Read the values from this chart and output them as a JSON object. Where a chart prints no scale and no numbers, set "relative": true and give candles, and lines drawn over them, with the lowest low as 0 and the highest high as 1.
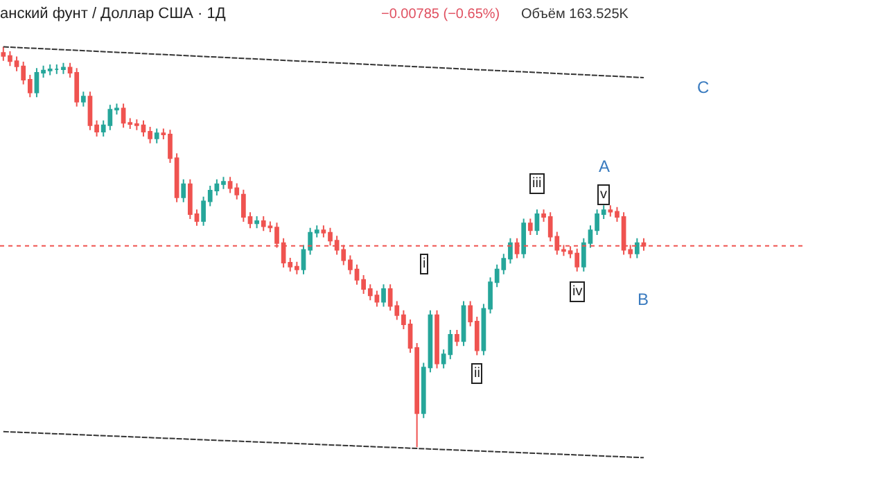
{
  "chart_data": {
    "type": "candlestick",
    "relative": true,
    "title": "анский фунт / Доллар США · 1Д",
    "annotations": [
      "−0.00785 (−0.65%)",
      "Объём 163.525K",
      "A",
      "B",
      "C",
      {
        "text": "i",
        "y": 0.458
      },
      {
        "text": "ii",
        "y": 0.183
      },
      {
        "text": "iii",
        "y": 0.657
      },
      {
        "text": "iv",
        "y": 0.389
      },
      {
        "text": "v",
        "y": 0.631
      }
    ],
    "colors": [
      "#ef5350",
      "#ef5350",
      "#ef5350",
      "#ef5350",
      "#ef5350",
      "#26a69a",
      "#26a69a",
      "#26a69a",
      "#26a69a",
      "#26a69a",
      "#ef5350",
      "#ef5350",
      "#26a69a",
      "#ef5350",
      "#ef5350",
      "#26a69a",
      "#26a69a",
      "#26a69a",
      "#ef5350",
      "#ef5350",
      "#ef5350",
      "#ef5350",
      "#ef5350",
      "#26a69a",
      "#ef5350",
      "#ef5350",
      "#ef5350",
      "#26a69a",
      "#ef5350",
      "#ef5350",
      "#26a69a",
      "#26a69a",
      "#26a69a",
      "#26a69a",
      "#ef5350",
      "#ef5350",
      "#ef5350",
      "#ef5350",
      "#26a69a",
      "#ef5350",
      "#ef5350",
      "#ef5350",
      "#ef5350",
      "#ef5350",
      "#ef5350",
      "#26a69a",
      "#26a69a",
      "#26a69a",
      "#ef5350",
      "#ef5350",
      "#ef5350",
      "#ef5350",
      "#ef5350",
      "#ef5350",
      "#ef5350",
      "#ef5350",
      "#ef5350",
      "#26a69a",
      "#ef5350",
      "#ef5350",
      "#ef5350",
      "#ef5350",
      "#ef5350",
      "#26a69a",
      "#26a69a",
      "#ef5350",
      "#26a69a",
      "#26a69a",
      "#ef5350",
      "#26a69a",
      "#ef5350",
      "#ef5350",
      "#26a69a",
      "#26a69a",
      "#26a69a",
      "#26a69a",
      "#26a69a",
      "#ef5350",
      "#26a69a",
      "#ef5350",
      "#26a69a",
      "#ef5350",
      "#ef5350",
      "#ef5350",
      "#ef5350",
      "#ef5350",
      "#ef5350",
      "#26a69a",
      "#26a69a",
      "#26a69a",
      "#26a69a",
      "#ef5350",
      "#ef5350",
      "#ef5350",
      "#ef5350",
      "#26a69a",
      "#ef5350"
    ],
    "categories": [
      null,
      null,
      null,
      null,
      null,
      null,
      null,
      null,
      null,
      null,
      null,
      null,
      null,
      null,
      null,
      null,
      null,
      null,
      null,
      null,
      null,
      null,
      null,
      null,
      null,
      null,
      null,
      null,
      null,
      null,
      null,
      null,
      null,
      null,
      null,
      null,
      null,
      null,
      null,
      null,
      null,
      null,
      null,
      null,
      null,
      null,
      null,
      null,
      null,
      null,
      null,
      null,
      null,
      null,
      null,
      null,
      null,
      null,
      null,
      null,
      null,
      null,
      null,
      null,
      null,
      null,
      null,
      null,
      null,
      null,
      null,
      null,
      null,
      null,
      null,
      null,
      null,
      null,
      null,
      null,
      null,
      null,
      null,
      null,
      null,
      null,
      null,
      null,
      null,
      null,
      null,
      null,
      null,
      null,
      null,
      null,
      null
    ],
    "ohlc": [
      [
        0.985,
        1.0,
        0.965,
        0.977
      ],
      [
        0.977,
        0.989,
        0.952,
        0.964
      ],
      [
        0.964,
        0.976,
        0.939,
        0.951
      ],
      [
        0.951,
        0.963,
        0.906,
        0.918
      ],
      [
        0.918,
        0.93,
        0.874,
        0.886
      ],
      [
        0.886,
        0.947,
        0.874,
        0.935
      ],
      [
        0.935,
        0.953,
        0.923,
        0.941
      ],
      [
        0.941,
        0.956,
        0.929,
        0.944
      ],
      [
        0.944,
        0.956,
        0.932,
        0.944
      ],
      [
        0.944,
        0.96,
        0.932,
        0.948
      ],
      [
        0.948,
        0.96,
        0.923,
        0.935
      ],
      [
        0.935,
        0.947,
        0.851,
        0.863
      ],
      [
        0.863,
        0.888,
        0.851,
        0.876
      ],
      [
        0.876,
        0.888,
        0.792,
        0.804
      ],
      [
        0.804,
        0.816,
        0.776,
        0.788
      ],
      [
        0.788,
        0.816,
        0.776,
        0.804
      ],
      [
        0.804,
        0.855,
        0.792,
        0.843
      ],
      [
        0.843,
        0.858,
        0.831,
        0.846
      ],
      [
        0.846,
        0.858,
        0.798,
        0.81
      ],
      [
        0.81,
        0.822,
        0.795,
        0.807
      ],
      [
        0.807,
        0.819,
        0.792,
        0.804
      ],
      [
        0.804,
        0.816,
        0.776,
        0.788
      ],
      [
        0.788,
        0.8,
        0.759,
        0.771
      ],
      [
        0.771,
        0.796,
        0.759,
        0.784
      ],
      [
        0.784,
        0.796,
        0.769,
        0.781
      ],
      [
        0.781,
        0.793,
        0.71,
        0.722
      ],
      [
        0.722,
        0.734,
        0.612,
        0.624
      ],
      [
        0.624,
        0.669,
        0.612,
        0.657
      ],
      [
        0.657,
        0.669,
        0.57,
        0.582
      ],
      [
        0.582,
        0.594,
        0.553,
        0.565
      ],
      [
        0.565,
        0.626,
        0.553,
        0.614
      ],
      [
        0.614,
        0.653,
        0.602,
        0.641
      ],
      [
        0.641,
        0.669,
        0.629,
        0.657
      ],
      [
        0.657,
        0.675,
        0.645,
        0.663
      ],
      [
        0.663,
        0.675,
        0.635,
        0.647
      ],
      [
        0.647,
        0.659,
        0.619,
        0.631
      ],
      [
        0.631,
        0.643,
        0.563,
        0.575
      ],
      [
        0.575,
        0.587,
        0.547,
        0.559
      ],
      [
        0.559,
        0.577,
        0.547,
        0.565
      ],
      [
        0.565,
        0.577,
        0.54,
        0.552
      ],
      [
        0.552,
        0.564,
        0.537,
        0.549
      ],
      [
        0.549,
        0.561,
        0.498,
        0.51
      ],
      [
        0.51,
        0.522,
        0.449,
        0.461
      ],
      [
        0.461,
        0.473,
        0.439,
        0.451
      ],
      [
        0.451,
        0.463,
        0.432,
        0.444
      ],
      [
        0.444,
        0.505,
        0.432,
        0.493
      ],
      [
        0.493,
        0.548,
        0.481,
        0.536
      ],
      [
        0.536,
        0.554,
        0.524,
        0.542
      ],
      [
        0.542,
        0.554,
        0.524,
        0.536
      ],
      [
        0.536,
        0.548,
        0.504,
        0.516
      ],
      [
        0.516,
        0.528,
        0.481,
        0.493
      ],
      [
        0.493,
        0.505,
        0.455,
        0.467
      ],
      [
        0.467,
        0.479,
        0.432,
        0.444
      ],
      [
        0.444,
        0.456,
        0.406,
        0.418
      ],
      [
        0.418,
        0.43,
        0.383,
        0.395
      ],
      [
        0.395,
        0.407,
        0.367,
        0.379
      ],
      [
        0.379,
        0.391,
        0.351,
        0.363
      ],
      [
        0.363,
        0.407,
        0.351,
        0.395
      ],
      [
        0.395,
        0.407,
        0.341,
        0.353
      ],
      [
        0.353,
        0.365,
        0.318,
        0.33
      ],
      [
        0.33,
        0.342,
        0.295,
        0.307
      ],
      [
        0.307,
        0.319,
        0.236,
        0.248
      ],
      [
        0.248,
        0.26,
        0.0,
        0.085
      ],
      [
        0.085,
        0.211,
        0.073,
        0.199
      ],
      [
        0.199,
        0.342,
        0.187,
        0.33
      ],
      [
        0.33,
        0.342,
        0.197,
        0.209
      ],
      [
        0.209,
        0.244,
        0.197,
        0.232
      ],
      [
        0.232,
        0.293,
        0.22,
        0.281
      ],
      [
        0.281,
        0.293,
        0.253,
        0.265
      ],
      [
        0.265,
        0.365,
        0.253,
        0.353
      ],
      [
        0.353,
        0.365,
        0.302,
        0.314
      ],
      [
        0.314,
        0.326,
        0.23,
        0.242
      ],
      [
        0.242,
        0.358,
        0.23,
        0.346
      ],
      [
        0.346,
        0.424,
        0.334,
        0.412
      ],
      [
        0.412,
        0.456,
        0.4,
        0.444
      ],
      [
        0.444,
        0.483,
        0.432,
        0.471
      ],
      [
        0.471,
        0.522,
        0.459,
        0.51
      ],
      [
        0.51,
        0.522,
        0.472,
        0.484
      ],
      [
        0.484,
        0.571,
        0.472,
        0.559
      ],
      [
        0.559,
        0.571,
        0.53,
        0.542
      ],
      [
        0.542,
        0.594,
        0.53,
        0.582
      ],
      [
        0.582,
        0.594,
        0.563,
        0.575
      ],
      [
        0.575,
        0.587,
        0.514,
        0.526
      ],
      [
        0.526,
        0.538,
        0.481,
        0.493
      ],
      [
        0.493,
        0.505,
        0.478,
        0.49
      ],
      [
        0.49,
        0.502,
        0.472,
        0.484
      ],
      [
        0.484,
        0.496,
        0.439,
        0.451
      ],
      [
        0.451,
        0.522,
        0.439,
        0.51
      ],
      [
        0.51,
        0.554,
        0.498,
        0.542
      ],
      [
        0.542,
        0.594,
        0.53,
        0.582
      ],
      [
        0.582,
        0.604,
        0.57,
        0.592
      ],
      [
        0.592,
        0.604,
        0.576,
        0.588
      ],
      [
        0.588,
        0.6,
        0.563,
        0.575
      ],
      [
        0.575,
        0.587,
        0.481,
        0.493
      ],
      [
        0.493,
        0.505,
        0.472,
        0.484
      ],
      [
        0.484,
        0.522,
        0.472,
        0.51
      ],
      [
        0.51,
        0.522,
        0.491,
        0.503
      ]
    ],
    "series": [
      {
        "type": "line",
        "values": [
          1.0,
          null,
          null,
          null,
          null,
          null,
          null,
          null,
          null,
          null,
          null,
          null,
          null,
          null,
          null,
          null,
          null,
          null,
          null,
          null,
          null,
          null,
          null,
          null,
          null,
          null,
          null,
          null,
          null,
          null,
          null,
          null,
          null,
          null,
          null,
          null,
          null,
          null,
          null,
          null,
          null,
          null,
          null,
          null,
          null,
          null,
          null,
          null,
          null,
          null,
          null,
          null,
          null,
          null,
          null,
          null,
          null,
          null,
          null,
          null,
          null,
          null,
          null,
          null,
          null,
          null,
          null,
          null,
          null,
          null,
          null,
          null,
          null,
          null,
          null,
          null,
          null,
          null,
          null,
          null,
          null,
          null,
          null,
          null,
          null,
          null,
          null,
          null,
          null,
          null,
          null,
          null,
          null,
          null,
          null,
          null,
          0.923
        ],
        "color": "#333333",
        "line_style": "dashed"
      },
      {
        "type": "line",
        "values": [
          0.039,
          null,
          null,
          null,
          null,
          null,
          null,
          null,
          null,
          null,
          null,
          null,
          null,
          null,
          null,
          null,
          null,
          null,
          null,
          null,
          null,
          null,
          null,
          null,
          null,
          null,
          null,
          null,
          null,
          null,
          null,
          null,
          null,
          null,
          null,
          null,
          null,
          null,
          null,
          null,
          null,
          null,
          null,
          null,
          null,
          null,
          null,
          null,
          null,
          null,
          null,
          null,
          null,
          null,
          null,
          null,
          null,
          null,
          null,
          null,
          null,
          null,
          null,
          null,
          null,
          null,
          null,
          null,
          null,
          null,
          null,
          null,
          null,
          null,
          null,
          null,
          null,
          null,
          null,
          null,
          null,
          null,
          null,
          null,
          null,
          null,
          null,
          null,
          null,
          null,
          null,
          null,
          null,
          null,
          null,
          null,
          -0.026
        ],
        "color": "#333333",
        "line_style": "dashed"
      }
    ],
    "ref_lines": [
      {
        "axis": "y",
        "value": 0.503,
        "color": "#ef5350",
        "line_style": "dotted"
      }
    ]
  }
}
